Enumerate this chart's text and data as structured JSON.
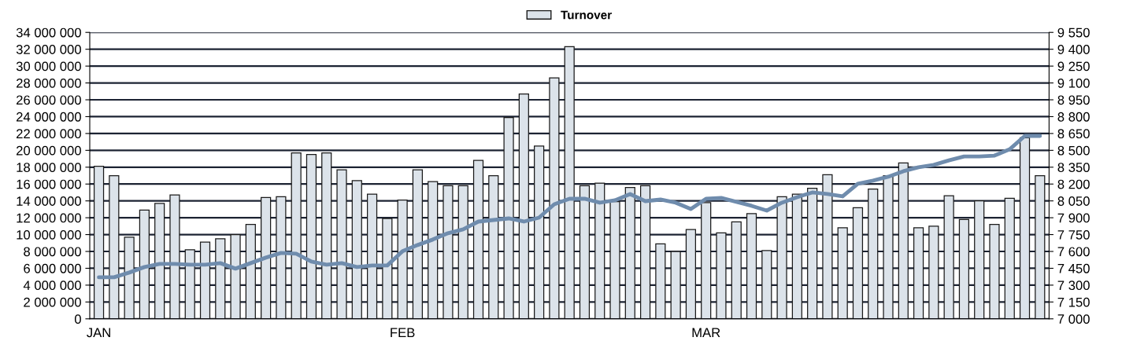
{
  "chart_data": {
    "type": "bar",
    "categories": [
      "JAN",
      null,
      null,
      null,
      null,
      null,
      null,
      null,
      null,
      null,
      null,
      null,
      null,
      null,
      null,
      null,
      null,
      null,
      null,
      null,
      "FEB",
      null,
      null,
      null,
      null,
      null,
      null,
      null,
      null,
      null,
      null,
      null,
      null,
      null,
      null,
      null,
      null,
      null,
      null,
      null,
      "MAR",
      null,
      null,
      null,
      null,
      null,
      null,
      null,
      null,
      null,
      null,
      null,
      null,
      null,
      null,
      null,
      null,
      null,
      null,
      null,
      null,
      null,
      null
    ],
    "series": [
      {
        "name": "Turnover",
        "color": "#dce3ea",
        "values": [
          18100000,
          17000000,
          9700000,
          12900000,
          13700000,
          14700000,
          8200000,
          9100000,
          9500000,
          10000000,
          11200000,
          14400000,
          14500000,
          19700000,
          19500000,
          19700000,
          17700000,
          16400000,
          14800000,
          11900000,
          14100000,
          17700000,
          16300000,
          15800000,
          15800000,
          18800000,
          17000000,
          23900000,
          26700000,
          20500000,
          28600000,
          32300000,
          15800000,
          16100000,
          13900000,
          15600000,
          15800000,
          8900000,
          8000000,
          10600000,
          13800000,
          10200000,
          11500000,
          12500000,
          8100000,
          14500000,
          14800000,
          15500000,
          17100000,
          10800000,
          13200000,
          15400000,
          17000000,
          18500000,
          10800000,
          11000000,
          14600000,
          11800000,
          14000000,
          11200000,
          14300000,
          21500000,
          17000000
        ]
      },
      {
        "type": "line",
        "axis": "y2",
        "color": "#6f8cad",
        "values": [
          7370,
          7370,
          7412,
          7461,
          7489,
          7489,
          7482,
          7482,
          7496,
          7447,
          7496,
          7545,
          7587,
          7580,
          7510,
          7482,
          7496,
          7461,
          7475,
          7475,
          7601,
          7657,
          7706,
          7762,
          7797,
          7866,
          7880,
          7894,
          7866,
          7901,
          8020,
          8069,
          8069,
          8034,
          8055,
          8111,
          8048,
          8062,
          8034,
          7978,
          8069,
          8076,
          8041,
          8006,
          7964,
          8034,
          8083,
          8125,
          8111,
          8090,
          8202,
          8230,
          8265,
          8314,
          8349,
          8370,
          8411,
          8446,
          8446,
          8453,
          8509,
          8628,
          8628
        ]
      }
    ],
    "ylim": [
      0,
      34000000
    ],
    "yticks": [
      {
        "value": 0,
        "label": "0"
      },
      {
        "value": 2000000,
        "label": "2 000 000"
      },
      {
        "value": 4000000,
        "label": "4 000 000"
      },
      {
        "value": 6000000,
        "label": "6 000 000"
      },
      {
        "value": 8000000,
        "label": "8 000 000"
      },
      {
        "value": 10000000,
        "label": "10 000 000"
      },
      {
        "value": 12000000,
        "label": "12 000 000"
      },
      {
        "value": 14000000,
        "label": "14 000 000"
      },
      {
        "value": 16000000,
        "label": "16 000 000"
      },
      {
        "value": 18000000,
        "label": "18 000 000"
      },
      {
        "value": 20000000,
        "label": "20 000 000"
      },
      {
        "value": 22000000,
        "label": "22 000 000"
      },
      {
        "value": 24000000,
        "label": "24 000 000"
      },
      {
        "value": 26000000,
        "label": "26 000 000"
      },
      {
        "value": 28000000,
        "label": "28 000 000"
      },
      {
        "value": 30000000,
        "label": "30 000 000"
      },
      {
        "value": 32000000,
        "label": "32 000 000"
      },
      {
        "value": 34000000,
        "label": "34 000 000"
      }
    ],
    "y2lim": [
      7000,
      9550
    ],
    "y2ticks": [
      {
        "value": 7000,
        "label": "7 000"
      },
      {
        "value": 7150,
        "label": "7 150"
      },
      {
        "value": 7300,
        "label": "7 300"
      },
      {
        "value": 7450,
        "label": "7 450"
      },
      {
        "value": 7600,
        "label": "7 600"
      },
      {
        "value": 7750,
        "label": "7 750"
      },
      {
        "value": 7900,
        "label": "7 900"
      },
      {
        "value": 8050,
        "label": "8 050"
      },
      {
        "value": 8200,
        "label": "8 200"
      },
      {
        "value": 8350,
        "label": "8 350"
      },
      {
        "value": 8500,
        "label": "8 500"
      },
      {
        "value": 8650,
        "label": "8 650"
      },
      {
        "value": 8800,
        "label": "8 800"
      },
      {
        "value": 8950,
        "label": "8 950"
      },
      {
        "value": 9100,
        "label": "9 100"
      },
      {
        "value": 9250,
        "label": "9 250"
      },
      {
        "value": 9400,
        "label": "9 400"
      },
      {
        "value": 9550,
        "label": "9 550"
      }
    ],
    "grid": "y",
    "legend": "top",
    "marker": "none",
    "line_style": "solid"
  }
}
